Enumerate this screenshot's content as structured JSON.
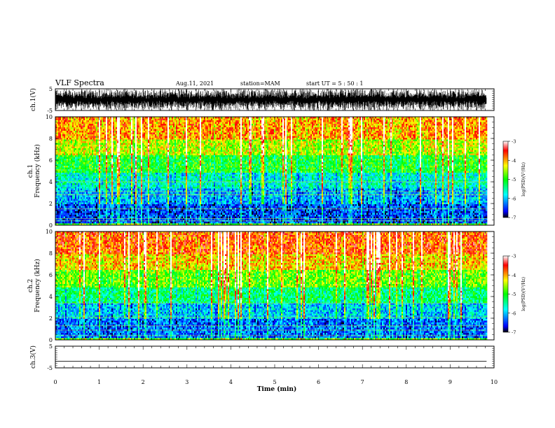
{
  "header": {
    "title": "VLF Spectra",
    "date": "Aug.11, 2021",
    "station": "station=MAM",
    "start": "start  UT  =   5  : 50 : 1"
  },
  "colorbar": {
    "label": "log(PSD)(V²/Hz)",
    "ticks": [
      "-3",
      "-4",
      "-5",
      "-6",
      "-7"
    ],
    "range": [
      -7,
      -3
    ],
    "colors": [
      "#000000",
      "#0000ff",
      "#00ffff",
      "#00ff00",
      "#ffff00",
      "#ff0000",
      "#ffffff"
    ]
  },
  "chart_data": [
    {
      "type": "line",
      "name": "waveform-ch1",
      "ylabel": "ch.1(V)",
      "ylim": [
        -5,
        5
      ],
      "yticks": [
        "5",
        "-5"
      ],
      "description_of_signal": "dense noisy waveform saturating near ±5 V",
      "xlim": [
        0,
        10
      ]
    },
    {
      "type": "heatmap",
      "name": "spectrogram-ch1",
      "ylabel_line1": "ch.1",
      "ylabel_line2": "Frequency (kHz)",
      "ylim": [
        0,
        10
      ],
      "yticks": [
        "0",
        "2",
        "4",
        "6",
        "8",
        "10"
      ],
      "xlim": [
        0,
        10
      ],
      "data_extent_x": [
        0,
        9.83
      ],
      "levels": [
        {
          "f_from": 0,
          "f_to": 0.3,
          "log_psd": -4.8
        },
        {
          "f_from": 0.3,
          "f_to": 2.0,
          "log_psd": -6.4
        },
        {
          "f_from": 2.0,
          "f_to": 3.5,
          "log_psd": -6.0
        },
        {
          "f_from": 3.5,
          "f_to": 5.0,
          "log_psd": -5.6
        },
        {
          "f_from": 5.0,
          "f_to": 6.5,
          "log_psd": -5.0
        },
        {
          "f_from": 6.5,
          "f_to": 8.0,
          "log_psd": -4.4
        },
        {
          "f_from": 8.0,
          "f_to": 10.0,
          "log_psd": -3.9
        }
      ],
      "tone_lines_khz": [
        0.4,
        0.6,
        1.5,
        2.8,
        3.1,
        4.0
      ]
    },
    {
      "type": "heatmap",
      "name": "spectrogram-ch2",
      "ylabel_line1": "ch.2",
      "ylabel_line2": "Frequency (kHz)",
      "ylim": [
        0,
        10
      ],
      "yticks": [
        "0",
        "2",
        "4",
        "6",
        "8",
        "10"
      ],
      "xlim": [
        0,
        10
      ],
      "data_extent_x": [
        0,
        9.83
      ],
      "levels": [
        {
          "f_from": 0,
          "f_to": 0.3,
          "log_psd": -4.8
        },
        {
          "f_from": 0.3,
          "f_to": 2.0,
          "log_psd": -6.3
        },
        {
          "f_from": 2.0,
          "f_to": 3.5,
          "log_psd": -5.9
        },
        {
          "f_from": 3.5,
          "f_to": 5.0,
          "log_psd": -5.3
        },
        {
          "f_from": 5.0,
          "f_to": 6.5,
          "log_psd": -4.7
        },
        {
          "f_from": 6.5,
          "f_to": 8.0,
          "log_psd": -4.1
        },
        {
          "f_from": 8.0,
          "f_to": 10.0,
          "log_psd": -3.7
        }
      ],
      "tone_lines_khz": [
        0.4,
        0.9,
        1.3,
        2.1,
        3.4
      ]
    },
    {
      "type": "line",
      "name": "waveform-ch3",
      "ylabel": "ch.3(V)",
      "ylim": [
        -5,
        5
      ],
      "yticks": [
        "5",
        "-5"
      ],
      "x": [
        0,
        9.83
      ],
      "y": [
        -2,
        -2
      ],
      "xlim": [
        0,
        10
      ]
    }
  ],
  "xaxis": {
    "label": "Time  (min)",
    "ticks": [
      "0",
      "1",
      "2",
      "3",
      "4",
      "5",
      "6",
      "7",
      "8",
      "9",
      "10"
    ],
    "range": [
      0,
      10
    ]
  }
}
